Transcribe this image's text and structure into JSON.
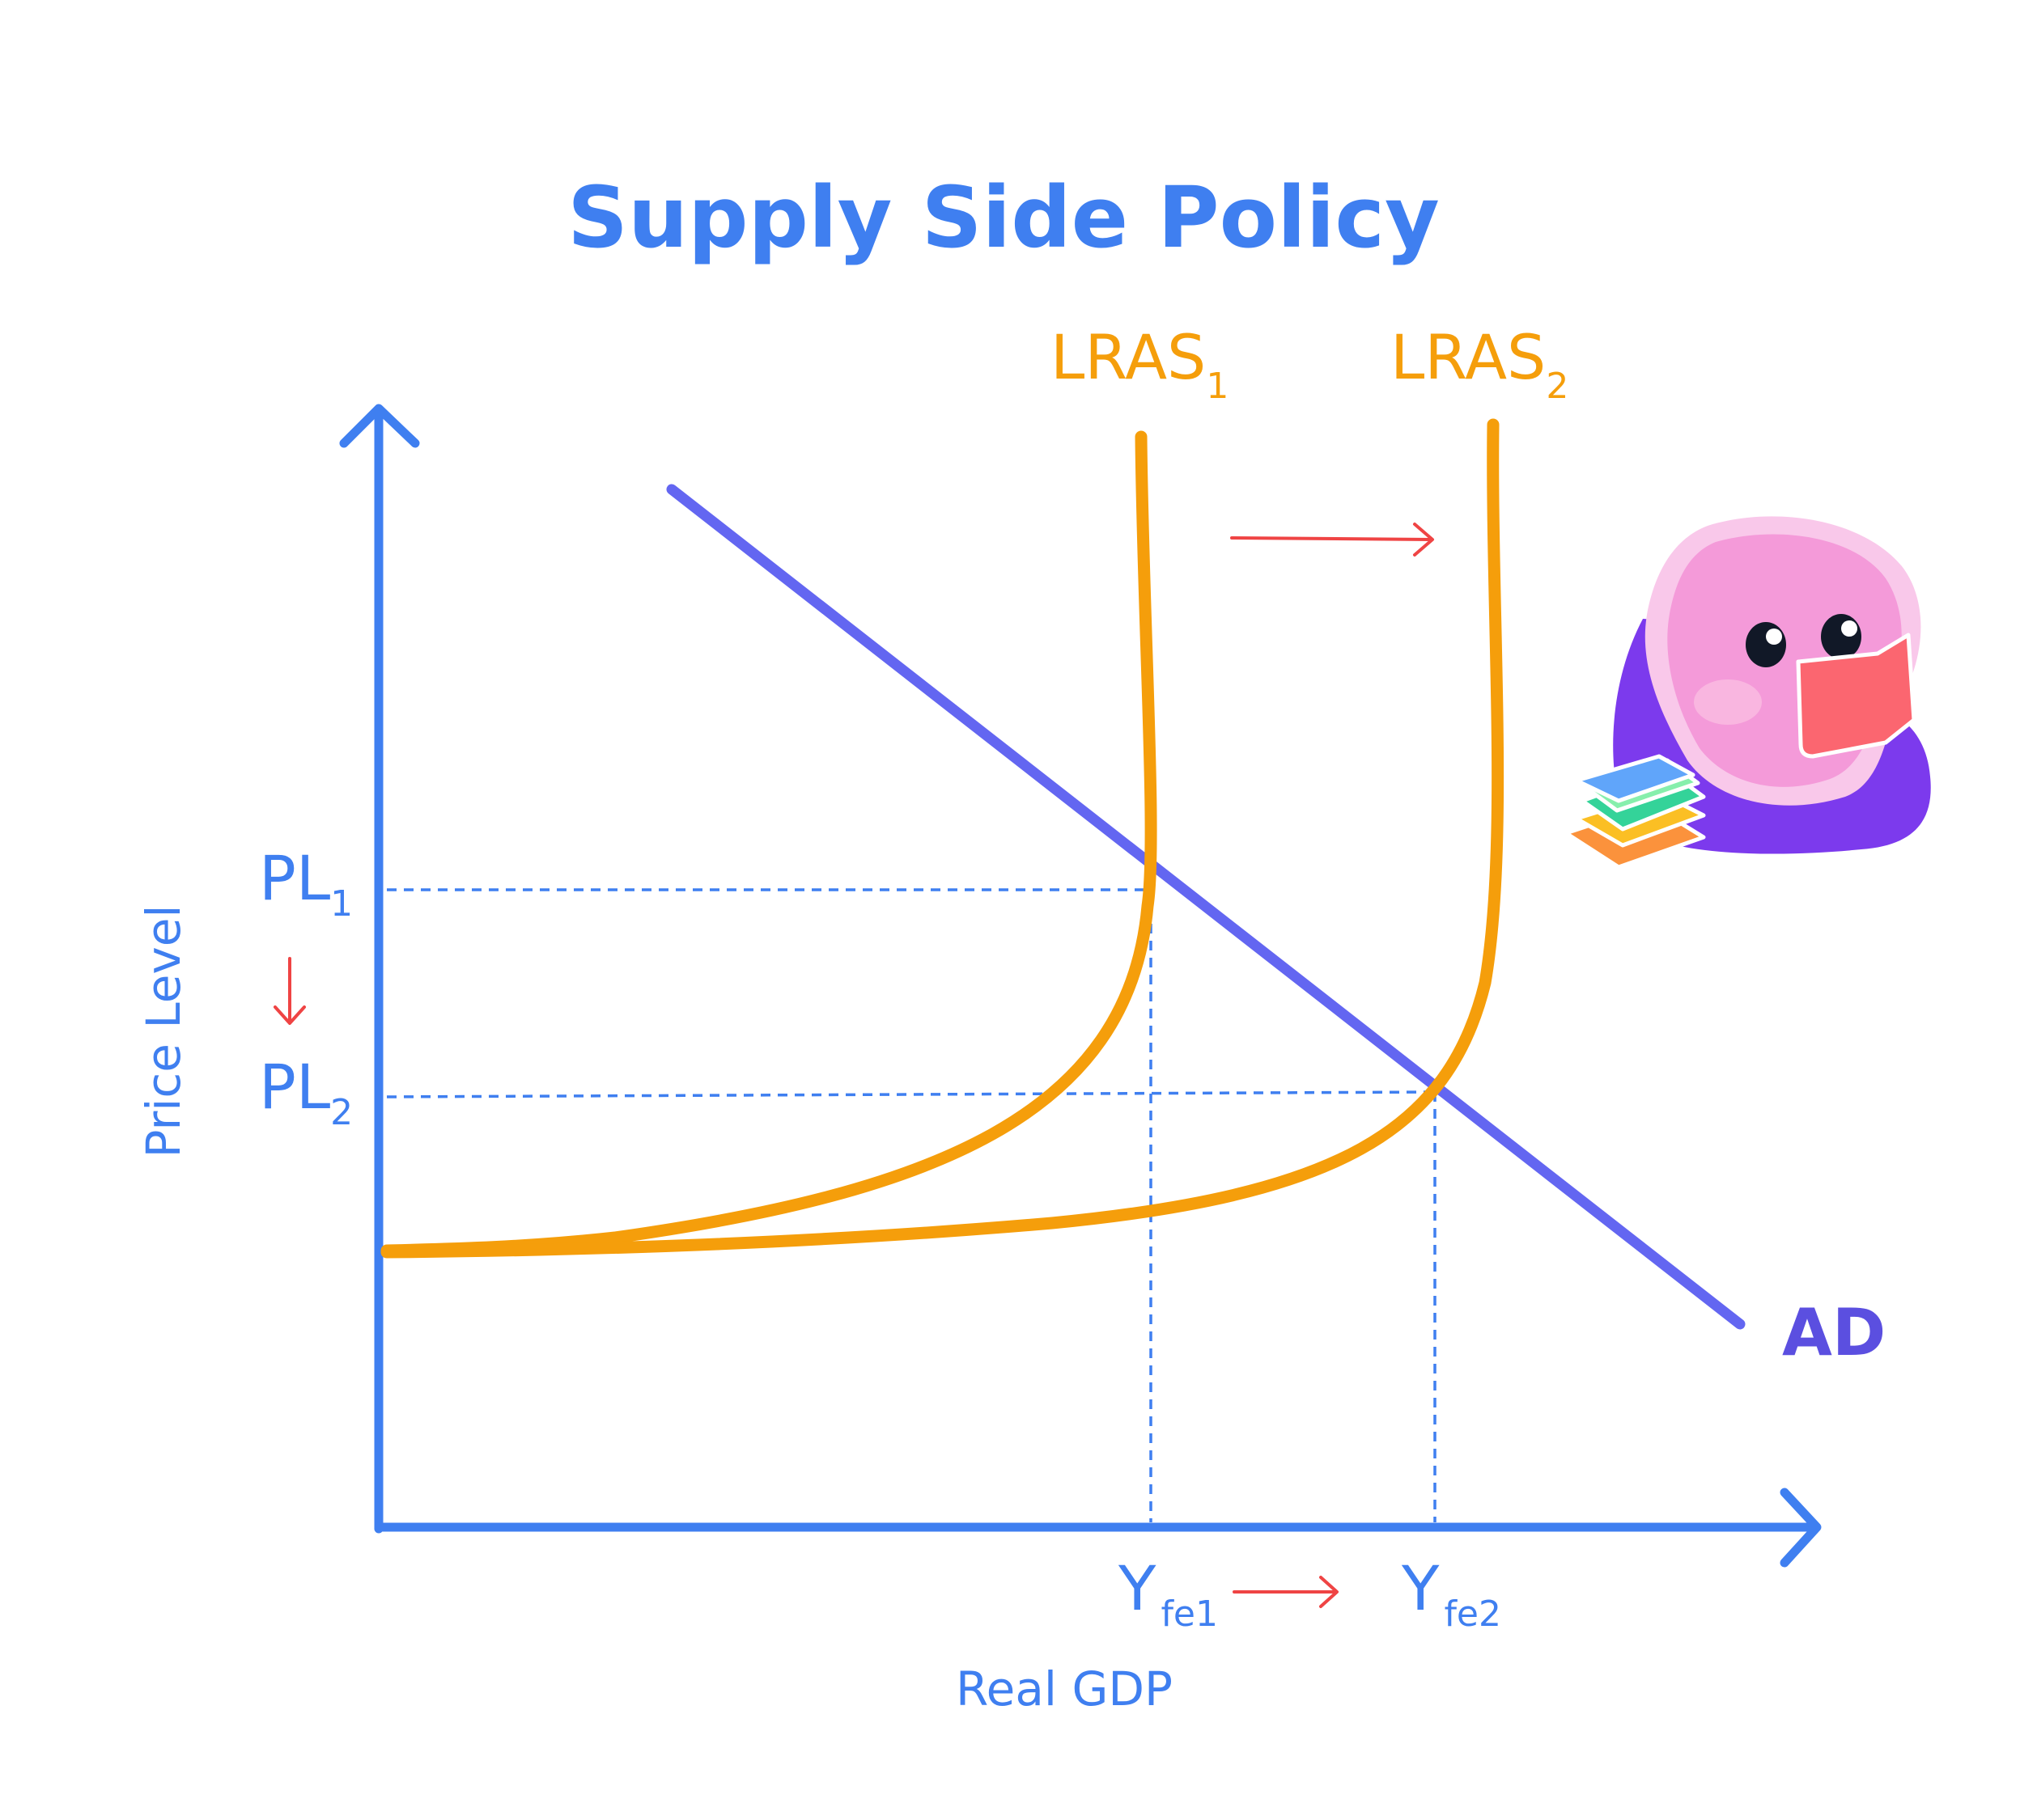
{
  "title": "Supply Side Policy",
  "axes": {
    "x_label": "Real GDP",
    "y_label": "Price Level"
  },
  "curves": {
    "lras1": {
      "label": "LRAS",
      "subscript": "1"
    },
    "lras2": {
      "label": "LRAS",
      "subscript": "2"
    },
    "ad": {
      "label": "AD"
    }
  },
  "price_levels": {
    "pl1": {
      "label": "PL",
      "subscript": "1"
    },
    "pl2": {
      "label": "PL",
      "subscript": "2"
    }
  },
  "outputs": {
    "yfe1": {
      "label": "Y",
      "subscript": "fe1"
    },
    "yfe2": {
      "label": "Y",
      "subscript": "fe2"
    }
  },
  "colors": {
    "axis": "#3f7ff0",
    "title": "#3f7ff0",
    "lras": "#f59e0b",
    "ad": "#6366f1",
    "ad_label": "#5b4fe0",
    "shift_arrow": "#ef4444",
    "guide": "#3f7ff0"
  },
  "illustration": "mascot-reading-book-icon"
}
